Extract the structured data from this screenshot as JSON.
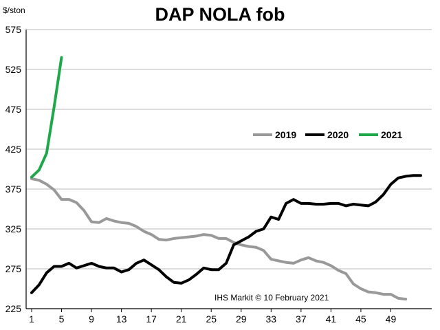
{
  "chart_data": {
    "type": "line",
    "title": "DAP NOLA fob",
    "ylabel": "$/ston",
    "xlabel": "",
    "ylim": [
      225,
      575
    ],
    "xlim": [
      1,
      53
    ],
    "yticks": [
      225,
      275,
      325,
      375,
      425,
      475,
      525,
      575
    ],
    "xticks": [
      1,
      5,
      9,
      13,
      17,
      21,
      25,
      29,
      33,
      37,
      41,
      45,
      49
    ],
    "grid": "horizontal",
    "legend": "right-center",
    "annotation": "IHS Markit  ©      10 February 2021",
    "series": [
      {
        "name": "2019",
        "color": "#999999",
        "x": [
          1,
          2,
          3,
          4,
          5,
          6,
          7,
          8,
          9,
          10,
          11,
          12,
          13,
          14,
          15,
          16,
          17,
          18,
          19,
          20,
          21,
          22,
          23,
          24,
          25,
          26,
          27,
          28,
          29,
          30,
          31,
          32,
          33,
          34,
          35,
          36,
          37,
          38,
          39,
          40,
          41,
          42,
          43,
          44,
          45,
          46,
          47,
          48,
          49,
          50,
          51
        ],
        "values": [
          388,
          386,
          381,
          374,
          362,
          362,
          358,
          348,
          334,
          333,
          338,
          335,
          333,
          332,
          328,
          322,
          318,
          312,
          311,
          313,
          314,
          315,
          316,
          318,
          317,
          313,
          313,
          308,
          305,
          303,
          302,
          298,
          287,
          285,
          283,
          282,
          286,
          289,
          285,
          283,
          279,
          273,
          269,
          256,
          250,
          246,
          245,
          243,
          243,
          238,
          237
        ]
      },
      {
        "name": "2020",
        "color": "#000000",
        "x": [
          1,
          2,
          3,
          4,
          5,
          6,
          7,
          8,
          9,
          10,
          11,
          12,
          13,
          14,
          15,
          16,
          17,
          18,
          19,
          20,
          21,
          22,
          23,
          24,
          25,
          26,
          27,
          28,
          29,
          30,
          31,
          32,
          33,
          34,
          35,
          36,
          37,
          38,
          39,
          40,
          41,
          42,
          43,
          44,
          45,
          46,
          47,
          48,
          49,
          50,
          51,
          52,
          53
        ],
        "values": [
          245,
          255,
          270,
          278,
          278,
          282,
          276,
          279,
          282,
          278,
          276,
          276,
          271,
          274,
          282,
          286,
          280,
          274,
          265,
          258,
          257,
          261,
          268,
          276,
          274,
          274,
          282,
          305,
          310,
          315,
          322,
          325,
          340,
          337,
          357,
          362,
          357,
          357,
          356,
          356,
          357,
          357,
          354,
          356,
          355,
          354,
          359,
          368,
          381,
          389,
          391,
          392,
          392
        ]
      },
      {
        "name": "2021",
        "color": "#1ea84a",
        "x": [
          1,
          2,
          3,
          4,
          5
        ],
        "values": [
          390,
          399,
          420,
          478,
          540
        ]
      }
    ]
  }
}
